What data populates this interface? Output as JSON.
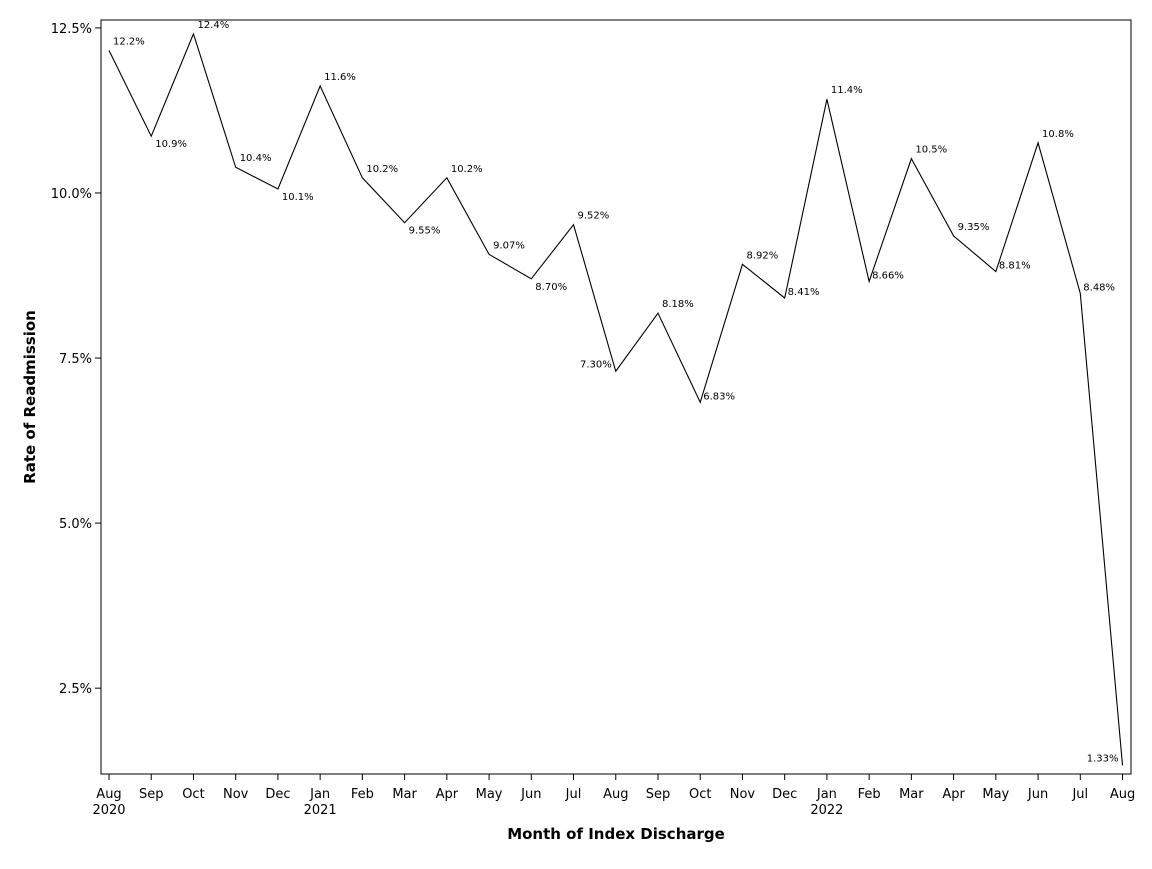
{
  "chart_data": {
    "type": "line",
    "title": "",
    "xlabel": "Month of Index Discharge",
    "ylabel": "Rate of Readmission",
    "ylim": [
      1.2,
      12.62
    ],
    "yticks": [
      {
        "value": 2.5,
        "label": "2.5%"
      },
      {
        "value": 5.0,
        "label": "5.0%"
      },
      {
        "value": 7.5,
        "label": "7.5%"
      },
      {
        "value": 10.0,
        "label": "10.0%"
      },
      {
        "value": 12.5,
        "label": "12.5%"
      }
    ],
    "grid": false,
    "legend": "none",
    "line_color": "#000000",
    "points": [
      {
        "month": "Aug",
        "year": "2020",
        "value": 12.16,
        "label": "12.2%",
        "label_pos": "ur"
      },
      {
        "month": "Sep",
        "year": "",
        "value": 10.86,
        "label": "10.9%",
        "label_pos": "lr"
      },
      {
        "month": "Oct",
        "year": "",
        "value": 12.41,
        "label": "12.4%",
        "label_pos": "ur"
      },
      {
        "month": "Nov",
        "year": "",
        "value": 10.39,
        "label": "10.4%",
        "label_pos": "ur"
      },
      {
        "month": "Dec",
        "year": "",
        "value": 10.06,
        "label": "10.1%",
        "label_pos": "lr"
      },
      {
        "month": "Jan",
        "year": "2021",
        "value": 11.62,
        "label": "11.6%",
        "label_pos": "ur"
      },
      {
        "month": "Feb",
        "year": "",
        "value": 10.23,
        "label": "10.2%",
        "label_pos": "ur"
      },
      {
        "month": "Mar",
        "year": "",
        "value": 9.55,
        "label": "9.55%",
        "label_pos": "lr"
      },
      {
        "month": "Apr",
        "year": "",
        "value": 10.23,
        "label": "10.2%",
        "label_pos": "ur"
      },
      {
        "month": "May",
        "year": "",
        "value": 9.07,
        "label": "9.07%",
        "label_pos": "ur"
      },
      {
        "month": "Jun",
        "year": "",
        "value": 8.7,
        "label": "8.70%",
        "label_pos": "lr"
      },
      {
        "month": "Jul",
        "year": "",
        "value": 9.52,
        "label": "9.52%",
        "label_pos": "ur"
      },
      {
        "month": "Aug",
        "year": "",
        "value": 7.3,
        "label": "7.30%",
        "label_pos": "ul"
      },
      {
        "month": "Sep",
        "year": "",
        "value": 8.18,
        "label": "8.18%",
        "label_pos": "ur"
      },
      {
        "month": "Oct",
        "year": "",
        "value": 6.83,
        "label": "6.83%",
        "label_pos": "r"
      },
      {
        "month": "Nov",
        "year": "",
        "value": 8.92,
        "label": "8.92%",
        "label_pos": "ur"
      },
      {
        "month": "Dec",
        "year": "",
        "value": 8.41,
        "label": "8.41%",
        "label_pos": "r"
      },
      {
        "month": "Jan",
        "year": "2022",
        "value": 11.42,
        "label": "11.4%",
        "label_pos": "ur"
      },
      {
        "month": "Feb",
        "year": "",
        "value": 8.66,
        "label": "8.66%",
        "label_pos": "r"
      },
      {
        "month": "Mar",
        "year": "",
        "value": 10.52,
        "label": "10.5%",
        "label_pos": "ur"
      },
      {
        "month": "Apr",
        "year": "",
        "value": 9.35,
        "label": "9.35%",
        "label_pos": "ur"
      },
      {
        "month": "May",
        "year": "",
        "value": 8.81,
        "label": "8.81%",
        "label_pos": "r"
      },
      {
        "month": "Jun",
        "year": "",
        "value": 10.76,
        "label": "10.8%",
        "label_pos": "ur"
      },
      {
        "month": "Jul",
        "year": "",
        "value": 8.48,
        "label": "8.48%",
        "label_pos": "r"
      },
      {
        "month": "Aug",
        "year": "",
        "value": 1.33,
        "label": "1.33%",
        "label_pos": "ul"
      }
    ]
  }
}
